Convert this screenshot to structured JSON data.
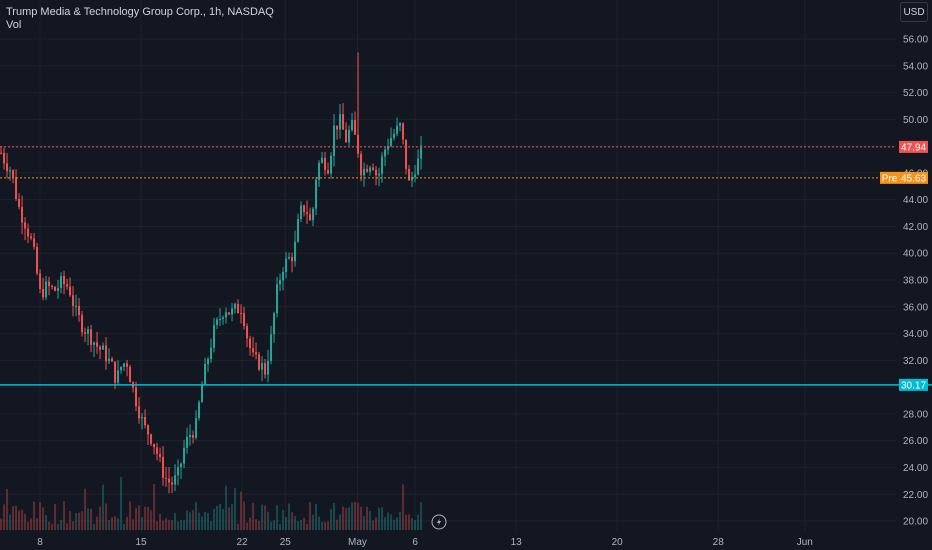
{
  "header": {
    "symbol_title": "Trump Media & Technology Group Corp., 1h, NASDAQ",
    "volume_label": "Vol",
    "currency": "USD"
  },
  "price_tags": {
    "last": "47.94",
    "pre_label": "Pre",
    "pre_value": "45.63",
    "level": "30.17"
  },
  "colors": {
    "background": "#131722",
    "grid": "#1f2330",
    "up": "#26a69a",
    "down": "#ef5350",
    "level_line": "#00bcd4",
    "pre_tag": "#f7931a"
  },
  "icons": {
    "replay": "lightning-icon"
  },
  "chart_data": {
    "type": "candlestick",
    "ylim": [
      19.5,
      57.5
    ],
    "yticks": [
      {
        "value": 56,
        "label": "56.00"
      },
      {
        "value": 54,
        "label": "54.00"
      },
      {
        "value": 52,
        "label": "52.00"
      },
      {
        "value": 50,
        "label": "50.00"
      },
      {
        "value": 48,
        "label": "48.00"
      },
      {
        "value": 46,
        "label": "46.00"
      },
      {
        "value": 44,
        "label": "44.00"
      },
      {
        "value": 42,
        "label": "42.00"
      },
      {
        "value": 40,
        "label": "40.00"
      },
      {
        "value": 38,
        "label": "38.00"
      },
      {
        "value": 36,
        "label": "36.00"
      },
      {
        "value": 34,
        "label": "34.00"
      },
      {
        "value": 32,
        "label": "32.00"
      },
      {
        "value": 30,
        "label": "30.00"
      },
      {
        "value": 28,
        "label": "28.00"
      },
      {
        "value": 26,
        "label": "26.00"
      },
      {
        "value": 24,
        "label": "24.00"
      },
      {
        "value": 22,
        "label": "22.00"
      },
      {
        "value": 20,
        "label": "20.00"
      }
    ],
    "xticks": [
      {
        "day": 8,
        "label": "8"
      },
      {
        "day": 15,
        "label": "15"
      },
      {
        "day": 22,
        "label": "22"
      },
      {
        "day": 25,
        "label": "25"
      },
      {
        "day": 30,
        "label": "May"
      },
      {
        "day": 34,
        "label": "6"
      },
      {
        "day": 41,
        "label": "13"
      },
      {
        "day": 48,
        "label": "20"
      },
      {
        "day": 55,
        "label": "28"
      },
      {
        "day": 61,
        "label": "Jun"
      }
    ],
    "last_price": 47.94,
    "pre_market_price": 45.63,
    "horizontal_level": 30.17,
    "close_path": [
      [
        5.3,
        47.5
      ],
      [
        5.6,
        46.8
      ],
      [
        6.0,
        46.2
      ],
      [
        6.5,
        43.5
      ],
      [
        7.0,
        42.2
      ],
      [
        7.5,
        40.5
      ],
      [
        8.0,
        37.0
      ],
      [
        8.5,
        37.5
      ],
      [
        9.0,
        37.2
      ],
      [
        9.5,
        37.8
      ],
      [
        10.0,
        37.5
      ],
      [
        10.5,
        35.5
      ],
      [
        11.0,
        34.5
      ],
      [
        11.5,
        33.8
      ],
      [
        12.0,
        33.0
      ],
      [
        12.5,
        32.5
      ],
      [
        13.0,
        31.5
      ],
      [
        13.3,
        30.5
      ],
      [
        13.6,
        31.5
      ],
      [
        14.0,
        32.0
      ],
      [
        14.4,
        30.0
      ],
      [
        14.8,
        28.5
      ],
      [
        15.2,
        27.0
      ],
      [
        15.6,
        26.5
      ],
      [
        16.0,
        25.5
      ],
      [
        16.4,
        24.0
      ],
      [
        16.8,
        23.0
      ],
      [
        17.2,
        22.8
      ],
      [
        17.6,
        23.5
      ],
      [
        18.0,
        25.5
      ],
      [
        18.4,
        26.5
      ],
      [
        18.8,
        27.0
      ],
      [
        19.2,
        30.0
      ],
      [
        19.6,
        32.0
      ],
      [
        20.0,
        34.0
      ],
      [
        20.4,
        35.0
      ],
      [
        20.8,
        36.0
      ],
      [
        21.2,
        35.5
      ],
      [
        21.6,
        35.8
      ],
      [
        22.0,
        36.0
      ],
      [
        22.4,
        33.5
      ],
      [
        22.8,
        32.0
      ],
      [
        23.2,
        31.8
      ],
      [
        23.6,
        31.2
      ],
      [
        24.0,
        33.5
      ],
      [
        24.4,
        37.0
      ],
      [
        24.8,
        39.0
      ],
      [
        25.2,
        39.5
      ],
      [
        25.6,
        40.0
      ],
      [
        26.0,
        43.0
      ],
      [
        26.4,
        43.5
      ],
      [
        26.8,
        42.0
      ],
      [
        27.2,
        46.5
      ],
      [
        27.6,
        47.0
      ],
      [
        28.0,
        46.5
      ],
      [
        28.4,
        49.5
      ],
      [
        28.8,
        49.8
      ],
      [
        29.2,
        48.5
      ],
      [
        29.6,
        49.5
      ],
      [
        30.0,
        48.0
      ],
      [
        30.3,
        46.0
      ],
      [
        30.6,
        46.5
      ],
      [
        31.0,
        47.0
      ],
      [
        31.4,
        45.5
      ],
      [
        31.8,
        47.5
      ],
      [
        32.2,
        48.5
      ],
      [
        32.6,
        49.0
      ],
      [
        33.0,
        49.5
      ],
      [
        33.3,
        47.0
      ],
      [
        33.6,
        45.0
      ],
      [
        34.0,
        46.5
      ],
      [
        34.3,
        47.0
      ],
      [
        34.5,
        47.9
      ]
    ],
    "volume_bars": 150,
    "volume_max_fraction": 0.16
  }
}
